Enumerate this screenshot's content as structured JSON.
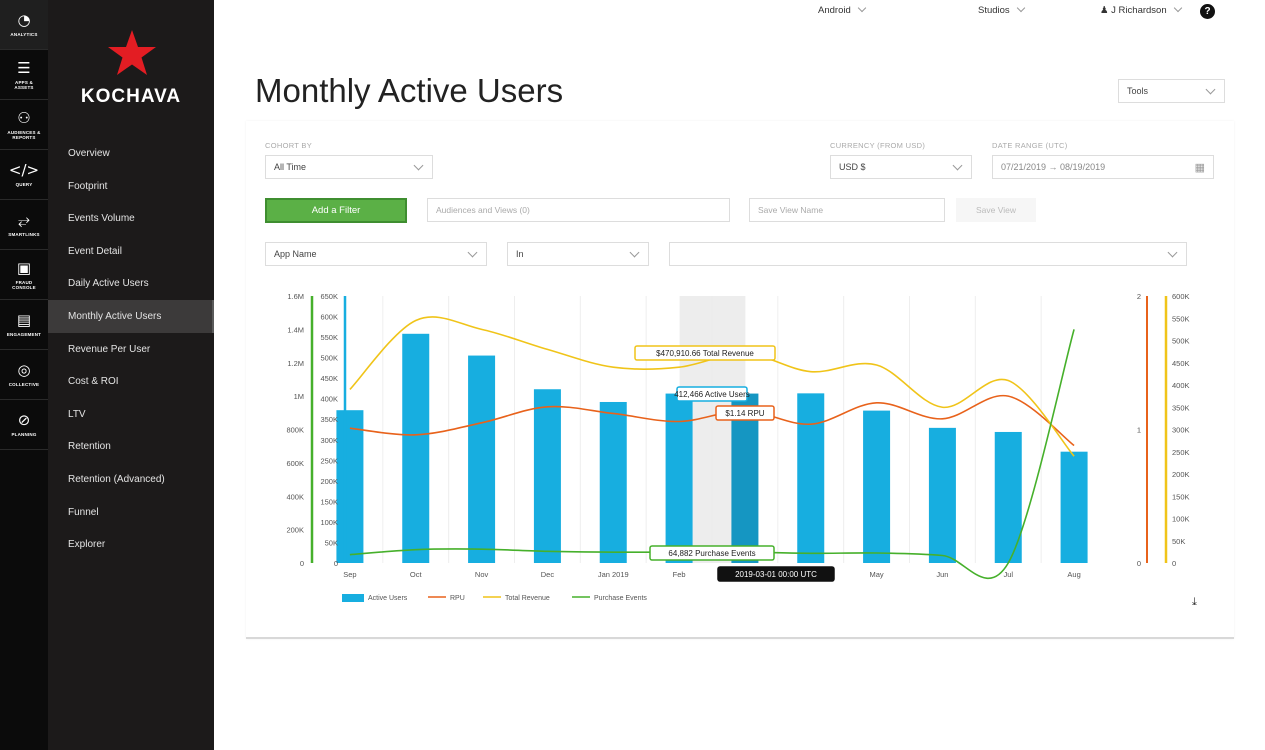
{
  "rail": [
    {
      "icon": "◔",
      "label": "ANALYTICS",
      "name": "analytics-icon"
    },
    {
      "icon": "☰",
      "label": "APPS &\nASSETS",
      "name": "apps-assets-icon"
    },
    {
      "icon": "⚇",
      "label": "AUDIENCES &\nREPORTS",
      "name": "audiences-reports-icon"
    },
    {
      "icon": "</>",
      "label": "QUERY",
      "name": "query-icon"
    },
    {
      "icon": "⥂",
      "label": "SMARTLINKS",
      "name": "smartlinks-icon"
    },
    {
      "icon": "▣",
      "label": "FRAUD\nCONSOLE",
      "name": "fraud-console-icon"
    },
    {
      "icon": "▤",
      "label": "ENGAGEMENT",
      "name": "engagement-icon"
    },
    {
      "icon": "◎",
      "label": "COLLECTIVE",
      "name": "collective-icon"
    },
    {
      "icon": "⊘",
      "label": "PLANNING",
      "name": "planning-icon"
    }
  ],
  "brand": {
    "name": "KOCHAVA",
    "star_color": "#e31d23"
  },
  "nav": [
    "Overview",
    "Footprint",
    "Events Volume",
    "Event Detail",
    "Daily Active Users",
    "Monthly Active Users",
    "Revenue Per User",
    "Cost & ROI",
    "LTV",
    "Retention",
    "Retention (Advanced)",
    "Funnel",
    "Explorer"
  ],
  "nav_active": "Monthly Active Users",
  "topbar": {
    "platform": "Android",
    "studio": "Studios",
    "user": "J Richardson",
    "help": "?"
  },
  "page": {
    "title": "Monthly Active Users",
    "tools_label": "Tools"
  },
  "filters": {
    "cohort_label": "COHORT BY",
    "cohort_value": "All Time",
    "currency_label": "CURRENCY (FROM USD)",
    "currency_value": "USD $",
    "date_label": "DATE RANGE (UTC)",
    "date_value": "07/21/2019 → 08/19/2019",
    "add_filter": "Add a Filter",
    "audiences_placeholder": "Audiences and Views (0)",
    "save_view_placeholder": "Save View Name",
    "save_view_button": "Save View",
    "app_name": "App Name",
    "operator": "In",
    "value": ""
  },
  "chart_data": {
    "type": "bar",
    "categories": [
      "Sep",
      "Oct",
      "Nov",
      "Dec",
      "Jan 2019",
      "Feb",
      "Mar",
      "Apr",
      "May",
      "Jun",
      "Jul",
      "Aug"
    ],
    "series": [
      {
        "name": "Active Users",
        "type": "bar",
        "color": "#17aee0",
        "axis": "users",
        "values": [
          372000,
          558000,
          505000,
          423000,
          392000,
          412466,
          412466,
          413000,
          371000,
          329000,
          319000,
          271000
        ]
      },
      {
        "name": "RPU",
        "type": "line",
        "color": "#e8621b",
        "axis": "rpu",
        "values": [
          1.01,
          0.96,
          1.05,
          1.17,
          1.12,
          1.06,
          1.14,
          1.04,
          1.2,
          1.08,
          1.25,
          0.88
        ]
      },
      {
        "name": "Total Revenue",
        "type": "line",
        "color": "#f0c419",
        "axis": "revenue",
        "values": [
          390000,
          545000,
          525000,
          480000,
          440000,
          440000,
          470910.66,
          430000,
          445000,
          350000,
          410000,
          240000
        ]
      },
      {
        "name": "Purchase Events",
        "type": "line",
        "color": "#46b02b",
        "axis": "events",
        "values": [
          50000,
          80000,
          83000,
          70000,
          65000,
          64882,
          64882,
          58000,
          60000,
          45000,
          0,
          1400000
        ]
      }
    ],
    "axes": {
      "events": {
        "ticks": [
          "0",
          "200K",
          "400K",
          "600K",
          "800K",
          "1M",
          "1.2M",
          "1.4M",
          "1.6M"
        ],
        "max": 1600000,
        "color": "#46b02b"
      },
      "users": {
        "ticks": [
          "0",
          "50K",
          "100K",
          "150K",
          "200K",
          "250K",
          "300K",
          "350K",
          "400K",
          "450K",
          "500K",
          "550K",
          "600K",
          "650K"
        ],
        "max": 650000,
        "color": "#17aee0"
      },
      "rpu": {
        "ticks": [
          "0",
          "1",
          "2"
        ],
        "max": 2,
        "color": "#e8621b"
      },
      "revenue": {
        "ticks": [
          "0",
          "50K",
          "100K",
          "150K",
          "200K",
          "250K",
          "300K",
          "350K",
          "400K",
          "450K",
          "500K",
          "550K",
          "600K"
        ],
        "max": 600000,
        "color": "#f0c419"
      }
    },
    "highlight_index": 6,
    "tooltips": {
      "revenue": "$470,910.66 Total Revenue",
      "users": "412,466 Active Users",
      "rpu": "$1.14 RPU",
      "events": "64,882 Purchase Events",
      "date": "2019-03-01 00:00 UTC"
    },
    "legend": [
      "Active Users",
      "RPU",
      "Total Revenue",
      "Purchase Events"
    ],
    "legend_placement": "bottom-left",
    "grid": true
  }
}
